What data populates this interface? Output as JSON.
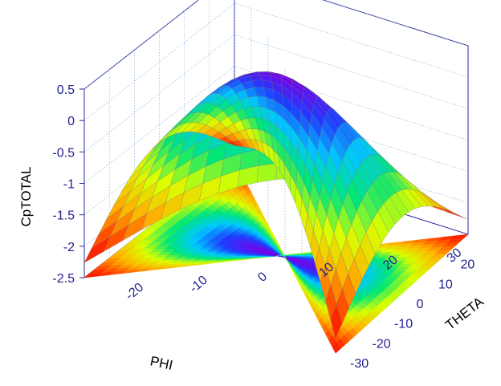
{
  "chart_data": {
    "type": "surface3d",
    "title": "",
    "zlabel": "CpTOTAL",
    "xlabel": "PHI",
    "ylabel": "THETA",
    "zlim": [
      -2.5,
      0.5
    ],
    "xlim": [
      -30,
      30
    ],
    "ylim": [
      -30,
      30
    ],
    "z_ticks": [
      "0.5",
      "0",
      "-0.5",
      "-1",
      "-1.5",
      "-2",
      "-2.5"
    ],
    "x_ticks": [
      "-20",
      "-10",
      "0",
      "10",
      "20",
      "30"
    ],
    "y_ticks": [
      "-30",
      "-20",
      "-10",
      "0",
      "10",
      "20"
    ],
    "surface": {
      "function": "cp = 1 - 4*sin^2(angle between the direction (PHI, THETA) and the stagnation axis); the dome top reaches about 0.4 near the centre and the rim falls to -2.5 at the corners",
      "peak_value": 0.4,
      "min_value": -2.5,
      "projection_on_floor": true
    },
    "colormap": [
      "#7a00e6",
      "#1f3cff",
      "#00c8ff",
      "#00e676",
      "#d8ff00",
      "#ffb000",
      "#ff2a00",
      "#d60000"
    ],
    "grid": true
  }
}
